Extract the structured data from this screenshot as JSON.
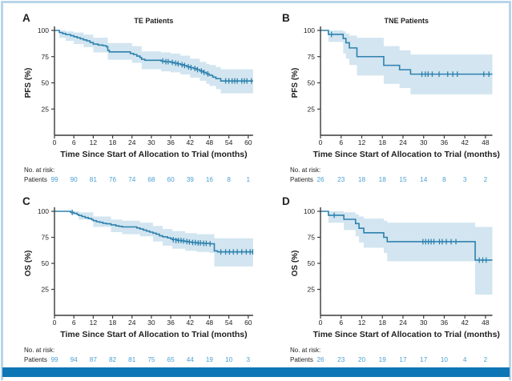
{
  "figure": {
    "line_color": "#2e81ae",
    "band_color": "#d2e5f0",
    "risk_number_color": "#4aa0d2",
    "axis_color": "#3a3a3a",
    "text_color": "#1f1f1f",
    "border_color": "#b7d5e8",
    "bottom_bar_color": "#0e76b5"
  },
  "shared": {
    "xlabel": "Time Since Start of Allocation to Trial (months)",
    "risk_header": "No. at risk:",
    "risk_row_label": "Patients"
  },
  "chart_data": [
    {
      "panel": "A",
      "type": "line",
      "subtype": "kaplan-meier-step",
      "letter": "A",
      "title": "TE Patients",
      "ylabel": "PFS (%)",
      "xticks": [
        0,
        6,
        12,
        18,
        24,
        30,
        36,
        42,
        48,
        54,
        60
      ],
      "yticks": [
        25,
        50,
        75,
        100
      ],
      "ylim": [
        0,
        100
      ],
      "xlim": [
        0,
        61.5
      ],
      "legend": "none",
      "steps": [
        [
          0,
          100
        ],
        [
          1.5,
          98
        ],
        [
          2.5,
          97
        ],
        [
          3.5,
          96
        ],
        [
          5,
          95
        ],
        [
          6,
          94
        ],
        [
          7,
          93
        ],
        [
          8,
          92
        ],
        [
          9,
          91
        ],
        [
          10,
          90
        ],
        [
          11,
          88.5
        ],
        [
          12,
          87
        ],
        [
          13.5,
          86
        ],
        [
          15,
          85.5
        ],
        [
          16,
          84.5
        ],
        [
          16.5,
          81
        ],
        [
          17,
          79.5
        ],
        [
          23.5,
          78
        ],
        [
          24.5,
          77
        ],
        [
          25.5,
          75.5
        ],
        [
          26.5,
          74
        ],
        [
          27,
          72.5
        ],
        [
          28,
          71.5
        ],
        [
          33,
          70.8
        ],
        [
          34,
          70.2
        ],
        [
          36,
          69.5
        ],
        [
          37,
          68.8
        ],
        [
          38,
          68.2
        ],
        [
          39,
          67.3
        ],
        [
          40,
          66.5
        ],
        [
          41,
          65.3
        ],
        [
          42,
          64.5
        ],
        [
          43,
          63.7
        ],
        [
          44,
          62.6
        ],
        [
          45,
          61.3
        ],
        [
          46,
          60
        ],
        [
          47,
          58.5
        ],
        [
          48,
          57.2
        ],
        [
          49,
          55.5
        ],
        [
          50,
          54
        ],
        [
          51.5,
          51.8
        ]
      ],
      "censors": [
        [
          33.5,
          70.8
        ],
        [
          34.5,
          70.2
        ],
        [
          35.2,
          70.2
        ],
        [
          36.5,
          69.5
        ],
        [
          37.5,
          68.8
        ],
        [
          38.3,
          68.2
        ],
        [
          39.5,
          67.3
        ],
        [
          40.3,
          66.5
        ],
        [
          41.5,
          65.3
        ],
        [
          42.3,
          64.5
        ],
        [
          43.5,
          63.7
        ],
        [
          44.3,
          62.6
        ],
        [
          45.5,
          61.3
        ],
        [
          46.3,
          60
        ],
        [
          47.5,
          58.5
        ],
        [
          53,
          51.8
        ],
        [
          54,
          51.8
        ],
        [
          55,
          51.8
        ],
        [
          55.8,
          51.8
        ],
        [
          56.6,
          51.8
        ],
        [
          58,
          51.8
        ],
        [
          58.8,
          51.8
        ],
        [
          59.6,
          51.8
        ],
        [
          61,
          51.8
        ]
      ],
      "ci": [
        [
          0,
          100,
          100
        ],
        [
          1.5,
          93,
          100
        ],
        [
          3.5,
          90,
          99
        ],
        [
          6,
          87,
          98
        ],
        [
          9,
          84,
          96
        ],
        [
          12,
          79,
          93
        ],
        [
          16.5,
          72,
          88
        ],
        [
          24,
          69,
          85
        ],
        [
          27,
          63,
          80
        ],
        [
          33,
          61,
          79
        ],
        [
          36,
          60,
          78
        ],
        [
          39,
          58,
          76
        ],
        [
          42,
          55,
          73
        ],
        [
          45,
          52,
          70
        ],
        [
          47,
          49,
          68
        ],
        [
          48,
          47,
          67
        ],
        [
          50,
          44,
          65
        ],
        [
          51.5,
          40,
          63
        ]
      ],
      "risk": [
        99,
        90,
        81,
        76,
        74,
        68,
        60,
        39,
        16,
        8,
        1
      ]
    },
    {
      "panel": "B",
      "type": "line",
      "subtype": "kaplan-meier-step",
      "letter": "B",
      "title": "TNE Patients",
      "ylabel": "PFS (%)",
      "xticks": [
        0,
        6,
        12,
        18,
        24,
        30,
        36,
        42,
        48
      ],
      "yticks": [
        25,
        50,
        75,
        100
      ],
      "ylim": [
        0,
        100
      ],
      "xlim": [
        0,
        50
      ],
      "legend": "none",
      "steps": [
        [
          0,
          100
        ],
        [
          2.3,
          96.2
        ],
        [
          6.6,
          92.3
        ],
        [
          7.4,
          88.2
        ],
        [
          8.4,
          83.3
        ],
        [
          10.6,
          75
        ],
        [
          18.4,
          66.7
        ],
        [
          23,
          62.5
        ],
        [
          26.2,
          58.3
        ]
      ],
      "censors": [
        [
          3.2,
          96.2
        ],
        [
          29.5,
          58.3
        ],
        [
          30.5,
          58.3
        ],
        [
          31.3,
          58.3
        ],
        [
          32.5,
          58.3
        ],
        [
          34.5,
          58.3
        ],
        [
          37,
          58.3
        ],
        [
          38.5,
          58.3
        ],
        [
          39.8,
          58.3
        ],
        [
          47.5,
          58.3
        ],
        [
          49,
          58.3
        ]
      ],
      "ci": [
        [
          0,
          100,
          100
        ],
        [
          2.3,
          89,
          100
        ],
        [
          6.6,
          78,
          99
        ],
        [
          7.4,
          73,
          97
        ],
        [
          8.4,
          67,
          95
        ],
        [
          10.6,
          57,
          93
        ],
        [
          18.4,
          49,
          85
        ],
        [
          23,
          45,
          81
        ],
        [
          26.2,
          39,
          77
        ]
      ],
      "risk": [
        26,
        23,
        18,
        18,
        15,
        14,
        8,
        3,
        2
      ]
    },
    {
      "panel": "C",
      "type": "line",
      "subtype": "kaplan-meier-step",
      "letter": "C",
      "title": "",
      "ylabel": "OS (%)",
      "xticks": [
        0,
        6,
        12,
        18,
        24,
        30,
        36,
        42,
        48,
        54,
        60
      ],
      "yticks": [
        25,
        50,
        75,
        100
      ],
      "ylim": [
        0,
        100
      ],
      "xlim": [
        0,
        61.5
      ],
      "legend": "none",
      "steps": [
        [
          0,
          100
        ],
        [
          5,
          99
        ],
        [
          6,
          98
        ],
        [
          7,
          97
        ],
        [
          7.5,
          96
        ],
        [
          8.5,
          95
        ],
        [
          9.5,
          94
        ],
        [
          10.5,
          93
        ],
        [
          11.5,
          92
        ],
        [
          12,
          91
        ],
        [
          13,
          90
        ],
        [
          14,
          89.5
        ],
        [
          15,
          88.5
        ],
        [
          16,
          88
        ],
        [
          17.5,
          87
        ],
        [
          19,
          86
        ],
        [
          20,
          85.5
        ],
        [
          21,
          85
        ],
        [
          25.5,
          84
        ],
        [
          26.5,
          83
        ],
        [
          27.5,
          82
        ],
        [
          28.5,
          81
        ],
        [
          29.5,
          80
        ],
        [
          30.5,
          79
        ],
        [
          31.5,
          78
        ],
        [
          32.5,
          76.5
        ],
        [
          33.5,
          75.5
        ],
        [
          35,
          74.5
        ],
        [
          36,
          73.5
        ],
        [
          36.5,
          72.8
        ],
        [
          38,
          72
        ],
        [
          39.5,
          71.5
        ],
        [
          40.5,
          71
        ],
        [
          41.5,
          70.5
        ],
        [
          42.5,
          70
        ],
        [
          44,
          69.6
        ],
        [
          46,
          69.2
        ],
        [
          48,
          68.8
        ],
        [
          49.5,
          62
        ],
        [
          50.5,
          61
        ]
      ],
      "censors": [
        [
          5.5,
          99
        ],
        [
          36.8,
          72.8
        ],
        [
          37.6,
          72
        ],
        [
          38.4,
          72
        ],
        [
          39.2,
          72
        ],
        [
          40,
          71.5
        ],
        [
          41,
          71
        ],
        [
          41.8,
          70.5
        ],
        [
          42.8,
          70
        ],
        [
          43.6,
          70
        ],
        [
          44.5,
          69.6
        ],
        [
          45.2,
          69.6
        ],
        [
          46.2,
          69.2
        ],
        [
          47,
          69.2
        ],
        [
          48.2,
          68.8
        ],
        [
          51.5,
          61
        ],
        [
          53,
          61
        ],
        [
          54.2,
          61
        ],
        [
          55.4,
          61
        ],
        [
          56.6,
          61
        ],
        [
          58,
          61
        ],
        [
          59.4,
          61
        ],
        [
          60.6,
          61
        ],
        [
          61.4,
          61
        ]
      ],
      "ci": [
        [
          0,
          100,
          100
        ],
        [
          5,
          97,
          100
        ],
        [
          7.5,
          92,
          99
        ],
        [
          12,
          85,
          95
        ],
        [
          17.5,
          80,
          92
        ],
        [
          21,
          78,
          91
        ],
        [
          26.5,
          76,
          89
        ],
        [
          30.5,
          71,
          86
        ],
        [
          33.5,
          67,
          83
        ],
        [
          36.5,
          64,
          81
        ],
        [
          40.5,
          62,
          79
        ],
        [
          44,
          61,
          78
        ],
        [
          48,
          60,
          78
        ],
        [
          49.5,
          47,
          74
        ]
      ],
      "risk": [
        99,
        94,
        87,
        82,
        81,
        75,
        65,
        44,
        19,
        10,
        3
      ]
    },
    {
      "panel": "D",
      "type": "line",
      "subtype": "kaplan-meier-step",
      "letter": "D",
      "title": "",
      "ylabel": "OS (%)",
      "xticks": [
        0,
        6,
        12,
        18,
        24,
        30,
        36,
        42,
        48
      ],
      "yticks": [
        25,
        50,
        75,
        100
      ],
      "ylim": [
        0,
        100
      ],
      "xlim": [
        0,
        50
      ],
      "legend": "none",
      "steps": [
        [
          0,
          100
        ],
        [
          2.3,
          96.2
        ],
        [
          6.8,
          92.3
        ],
        [
          10.2,
          88.2
        ],
        [
          11.2,
          83.7
        ],
        [
          12.6,
          79.4
        ],
        [
          18.4,
          75
        ],
        [
          19.4,
          70.8
        ],
        [
          45,
          53.1
        ]
      ],
      "censors": [
        [
          4,
          96.2
        ],
        [
          29.8,
          70.8
        ],
        [
          30.6,
          70.8
        ],
        [
          31.4,
          70.8
        ],
        [
          32.2,
          70.8
        ],
        [
          33,
          70.8
        ],
        [
          34.6,
          70.8
        ],
        [
          35.4,
          70.8
        ],
        [
          36.6,
          70.8
        ],
        [
          38,
          70.8
        ],
        [
          39.4,
          70.8
        ],
        [
          46.2,
          53.1
        ],
        [
          47.2,
          53.1
        ],
        [
          48.2,
          53.1
        ]
      ],
      "ci": [
        [
          0,
          100,
          100
        ],
        [
          2.3,
          89,
          100
        ],
        [
          6.8,
          82,
          99
        ],
        [
          10.2,
          76,
          97
        ],
        [
          11.2,
          70,
          95
        ],
        [
          12.6,
          65,
          93
        ],
        [
          18.4,
          60,
          91
        ],
        [
          19.4,
          52,
          89
        ],
        [
          45,
          20,
          85
        ]
      ],
      "risk": [
        26,
        23,
        20,
        19,
        17,
        17,
        10,
        4,
        2
      ]
    }
  ]
}
